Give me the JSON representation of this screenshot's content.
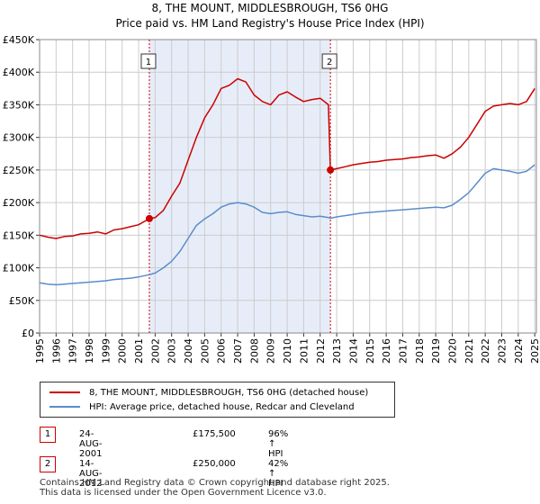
{
  "header": {
    "title": "8, THE MOUNT, MIDDLESBROUGH, TS6 0HG",
    "subtitle": "Price paid vs. HM Land Registry's House Price Index (HPI)"
  },
  "chart_data": {
    "type": "line",
    "x_ticks": [
      "1995",
      "1996",
      "1997",
      "1998",
      "1999",
      "2000",
      "2001",
      "2002",
      "2003",
      "2004",
      "2005",
      "2006",
      "2007",
      "2008",
      "2009",
      "2010",
      "2011",
      "2012",
      "2013",
      "2014",
      "2015",
      "2016",
      "2017",
      "2018",
      "2019",
      "2020",
      "2021",
      "2022",
      "2023",
      "2024",
      "2025"
    ],
    "y_ticks": [
      "£0",
      "£50K",
      "£100K",
      "£150K",
      "£200K",
      "£250K",
      "£300K",
      "£350K",
      "£400K",
      "£450K"
    ],
    "xlim": [
      1995,
      2025.1
    ],
    "ylim": [
      0,
      450000
    ],
    "grid": true,
    "shaded_period": [
      2001.65,
      2012.62
    ],
    "series": [
      {
        "name": "8, THE MOUNT, MIDDLESBROUGH, TS6 0HG (detached house)",
        "color": "#cc0000",
        "x": [
          1995.0,
          1995.5,
          1996.0,
          1996.5,
          1997.0,
          1997.5,
          1998.0,
          1998.5,
          1999.0,
          1999.5,
          2000.0,
          2000.5,
          2001.0,
          2001.65,
          2002.0,
          2002.5,
          2003.0,
          2003.5,
          2004.0,
          2004.5,
          2005.0,
          2005.5,
          2006.0,
          2006.5,
          2007.0,
          2007.5,
          2008.0,
          2008.5,
          2009.0,
          2009.5,
          2010.0,
          2010.5,
          2011.0,
          2011.5,
          2012.0,
          2012.5,
          2012.62,
          2013.0,
          2013.5,
          2014.0,
          2014.5,
          2015.0,
          2015.5,
          2016.0,
          2016.5,
          2017.0,
          2017.5,
          2018.0,
          2018.5,
          2019.0,
          2019.5,
          2020.0,
          2020.5,
          2021.0,
          2021.5,
          2022.0,
          2022.5,
          2023.0,
          2023.5,
          2024.0,
          2024.5,
          2025.0
        ],
        "y": [
          150000,
          147000,
          145000,
          148000,
          149000,
          152000,
          153000,
          155000,
          152000,
          158000,
          160000,
          163000,
          166000,
          175500,
          177000,
          188000,
          210000,
          230000,
          265000,
          300000,
          330000,
          350000,
          375000,
          380000,
          390000,
          385000,
          365000,
          355000,
          350000,
          365000,
          370000,
          362000,
          355000,
          358000,
          360000,
          350000,
          250000,
          252000,
          255000,
          258000,
          260000,
          262000,
          263000,
          265000,
          266000,
          267000,
          269000,
          270000,
          272000,
          273000,
          268000,
          275000,
          285000,
          300000,
          320000,
          340000,
          348000,
          350000,
          352000,
          350000,
          355000,
          375000
        ]
      },
      {
        "name": "HPI: Average price, detached house, Redcar and Cleveland",
        "color": "#5b8ccc",
        "x": [
          1995.0,
          1995.5,
          1996.0,
          1996.5,
          1997.0,
          1997.5,
          1998.0,
          1998.5,
          1999.0,
          1999.5,
          2000.0,
          2000.5,
          2001.0,
          2001.65,
          2002.0,
          2002.5,
          2003.0,
          2003.5,
          2004.0,
          2004.5,
          2005.0,
          2005.5,
          2006.0,
          2006.5,
          2007.0,
          2007.5,
          2008.0,
          2008.5,
          2009.0,
          2009.5,
          2010.0,
          2010.5,
          2011.0,
          2011.5,
          2012.0,
          2012.5,
          2012.62,
          2013.0,
          2013.5,
          2014.0,
          2014.5,
          2015.0,
          2015.5,
          2016.0,
          2016.5,
          2017.0,
          2017.5,
          2018.0,
          2018.5,
          2019.0,
          2019.5,
          2020.0,
          2020.5,
          2021.0,
          2021.5,
          2022.0,
          2022.5,
          2023.0,
          2023.5,
          2024.0,
          2024.5,
          2025.0
        ],
        "y": [
          77000,
          75000,
          74000,
          75000,
          76000,
          77000,
          78000,
          79000,
          80000,
          82000,
          83000,
          84000,
          86000,
          89500,
          92000,
          100000,
          110000,
          125000,
          145000,
          165000,
          175000,
          183000,
          193000,
          198000,
          200000,
          198000,
          193000,
          185000,
          183000,
          185000,
          186000,
          182000,
          180000,
          178000,
          179000,
          177000,
          176000,
          178000,
          180000,
          182000,
          184000,
          185000,
          186000,
          187000,
          188000,
          189000,
          190000,
          191000,
          192000,
          193000,
          192000,
          196000,
          205000,
          215000,
          230000,
          245000,
          252000,
          250000,
          248000,
          245000,
          248000,
          258000
        ]
      }
    ],
    "annotations": [
      {
        "label": "1",
        "x": 2001.65,
        "y": 175500
      },
      {
        "label": "2",
        "x": 2012.62,
        "y": 250000
      }
    ]
  },
  "legend": {
    "items": [
      {
        "label": "8, THE MOUNT, MIDDLESBROUGH, TS6 0HG (detached house)",
        "color": "#cc0000"
      },
      {
        "label": "HPI: Average price, detached house, Redcar and Cleveland",
        "color": "#5b8ccc"
      }
    ]
  },
  "sales": [
    {
      "num": "1",
      "date": "24-AUG-2001",
      "price": "£175,500",
      "hpi": "96% ↑ HPI"
    },
    {
      "num": "2",
      "date": "14-AUG-2012",
      "price": "£250,000",
      "hpi": "42% ↑ HPI"
    }
  ],
  "footer": {
    "line1": "Contains HM Land Registry data © Crown copyright and database right 2025.",
    "line2": "This data is licensed under the Open Government Licence v3.0."
  }
}
